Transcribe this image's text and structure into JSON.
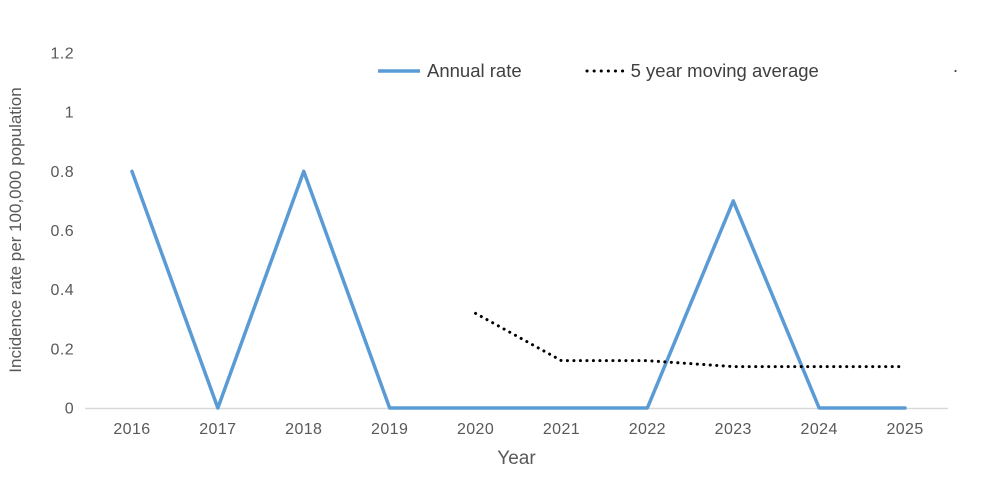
{
  "legend": {
    "items": [
      {
        "label": "Annual rate",
        "color": "#5b9bd5",
        "style": "solid"
      },
      {
        "label": "5 year moving average",
        "color": "#000000",
        "style": "dotted"
      }
    ],
    "stray_text": "."
  },
  "chart_data": {
    "type": "line",
    "title": "",
    "xlabel": "Year",
    "ylabel": "Incidence rate per 100,000 population",
    "categories": [
      "2016",
      "2017",
      "2018",
      "2019",
      "2020",
      "2021",
      "2022",
      "2023",
      "2024",
      "2025"
    ],
    "ylim": [
      0,
      1.2
    ],
    "yticks": [
      0,
      0.2,
      0.4,
      0.6,
      0.8,
      1,
      1.2
    ],
    "ytick_labels": [
      "0",
      "0.2",
      "0.4",
      "0.6",
      "0.8",
      "1",
      "1.2"
    ],
    "grid": false,
    "legend_position": "top",
    "axis_color": "#d9d9d9",
    "text_color": "#595959",
    "series": [
      {
        "name": "Annual rate",
        "slug": "annual-rate",
        "color": "#5b9bd5",
        "style": "solid",
        "x": [
          "2016",
          "2017",
          "2018",
          "2019",
          "2020",
          "2021",
          "2022",
          "2023",
          "2024",
          "2025"
        ],
        "values": [
          0.8,
          0,
          0.8,
          0,
          0,
          0,
          0,
          0.7,
          0,
          0
        ]
      },
      {
        "name": "5 year moving average",
        "slug": "moving-average",
        "color": "#000000",
        "style": "dotted",
        "x": [
          "2020",
          "2021",
          "2022",
          "2023",
          "2024",
          "2025"
        ],
        "values": [
          0.32,
          0.16,
          0.16,
          0.14,
          0.14,
          0.14
        ]
      }
    ]
  }
}
